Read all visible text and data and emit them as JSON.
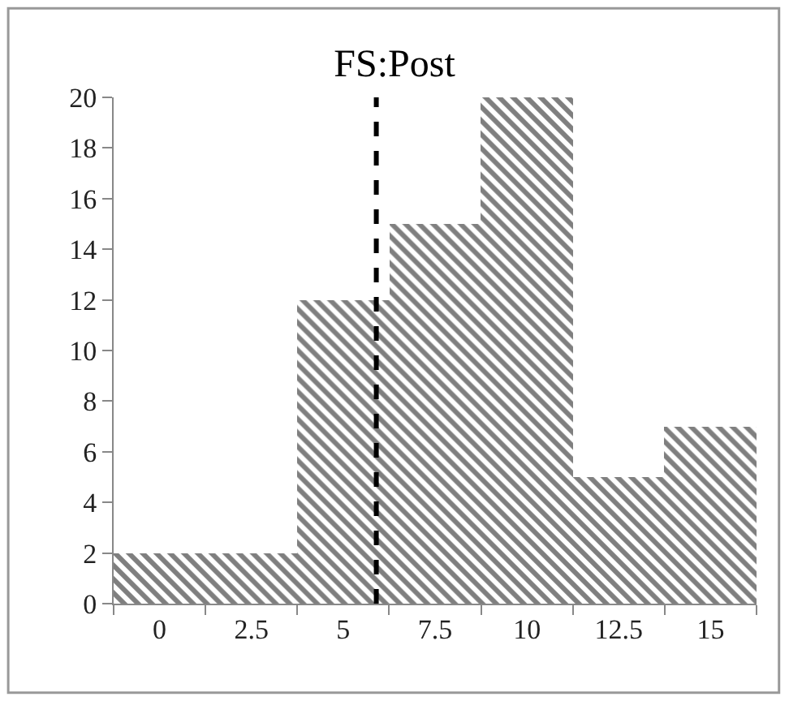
{
  "chart_data": {
    "type": "histogram",
    "title": "FS:Post",
    "bins": [
      -1.25,
      1.25,
      3.75,
      6.25,
      8.75,
      11.25,
      13.75,
      16.25
    ],
    "values": [
      2,
      2,
      12,
      15,
      20,
      5,
      7
    ],
    "color": "#000000",
    "xlim": [
      -1.25,
      16.25
    ],
    "xticks": [
      0,
      2.5,
      5,
      7.5,
      10,
      12.5,
      15
    ],
    "ylim": [
      0,
      20
    ],
    "yticks": [
      0,
      2,
      4,
      6,
      8,
      10,
      12,
      14,
      16,
      18,
      20
    ],
    "ref_lines": [
      {
        "axis": "x",
        "value": 5.9,
        "line_style": "dashed",
        "color": "#000000"
      }
    ]
  }
}
